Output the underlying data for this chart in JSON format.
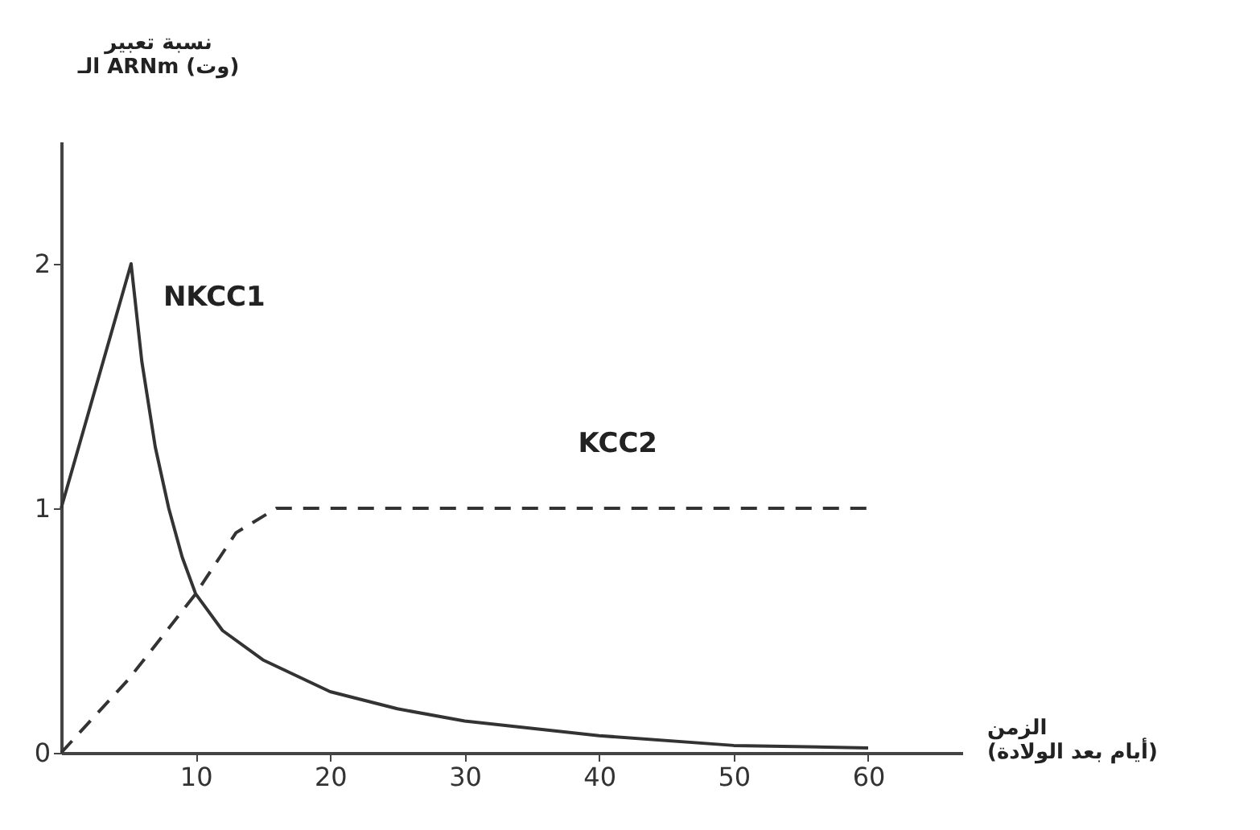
{
  "chart_data": {
    "type": "line",
    "xlabel": "الزمن\n(أيام بعد الولادة)",
    "ylabel": "نسبة تعبير\nالـ ARNm (وت)",
    "xlim": [
      0,
      67
    ],
    "ylim": [
      0,
      2.5
    ],
    "xticks": [
      10,
      20,
      30,
      40,
      50,
      60
    ],
    "yticks": [
      0,
      1,
      2
    ],
    "grid": false,
    "marker": "none",
    "series": [
      {
        "color": "#333333",
        "line_style": "solid",
        "x": [
          0,
          5.2,
          6,
          7,
          8,
          9,
          10,
          12,
          15,
          20,
          25,
          30,
          40,
          50,
          60
        ],
        "values": [
          1,
          2,
          1.6,
          1.25,
          1.0,
          0.8,
          0.65,
          0.5,
          0.38,
          0.25,
          0.18,
          0.13,
          0.07,
          0.03,
          0.02
        ]
      },
      {
        "color": "#333333",
        "line_style": "dashed",
        "x": [
          0,
          5,
          10,
          13,
          16,
          60
        ],
        "values": [
          0,
          0.3,
          0.65,
          0.9,
          1,
          1
        ]
      }
    ],
    "annotations": [
      {
        "text": "NKCC1",
        "x": 6,
        "y": 1.6
      },
      {
        "text": "KCC2",
        "x": 36,
        "y": 1
      }
    ]
  }
}
